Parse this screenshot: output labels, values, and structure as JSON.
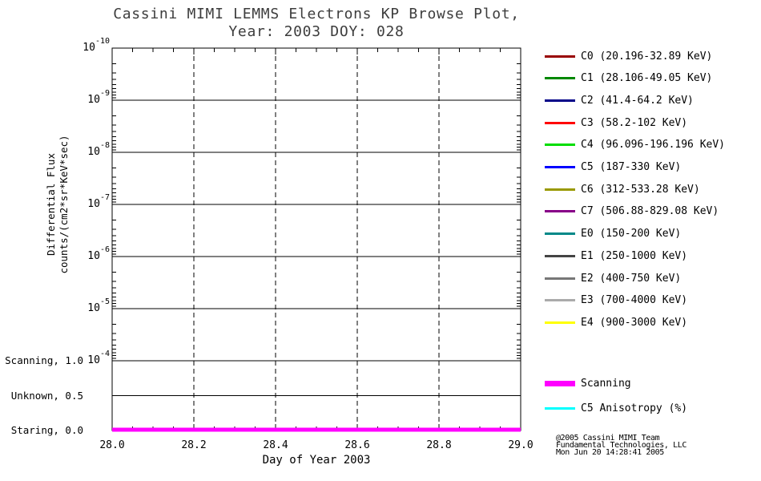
{
  "title": {
    "line1": "Cassini MIMI LEMMS Electrons KP Browse Plot,",
    "line2": "Year: 2003 DOY: 028"
  },
  "axes": {
    "x_title": "Day of Year 2003",
    "y_title_line1": "Differential Flux",
    "y_title_line2": "counts/(cm2*sr*KeV*sec)"
  },
  "attribution": {
    "line1": "@2005 Cassini MIMI Team",
    "line2": "Fundamental Technologies, LLC",
    "line3": "Mon Jun 20 14:28:41 2005"
  },
  "chart_data": {
    "type": "line",
    "title": "Cassini MIMI LEMMS Electrons KP Browse Plot, Year: 2003 DOY: 028",
    "xlabel": "Day of Year 2003",
    "ylabel": "Differential Flux counts/(cm2*sr*KeV*sec)",
    "xlim": [
      28.0,
      29.0
    ],
    "x_tick_labels": [
      "28.0",
      "28.2",
      "28.4",
      "28.6",
      "28.8",
      "29.0"
    ],
    "y_scale": "log, reversed: 1e-10 at top to 1e-4 at bottom of flux panel",
    "y_tick_exponents": [
      -10,
      -9,
      -8,
      -7,
      -6,
      -5,
      -4
    ],
    "mode_ticks": [
      {
        "label": "Scanning, 1.0",
        "value": 1.0
      },
      {
        "label": "Unknown, 0.5",
        "value": 0.5
      },
      {
        "label": "Staring, 0.0",
        "value": 0.0
      }
    ],
    "grid": {
      "horizontal": "solid",
      "vertical": "dashed",
      "legend_position": "right"
    },
    "series": [
      {
        "name": "Scanning",
        "color": "#FF00FF",
        "axis": "mode",
        "x": [
          28.0,
          29.0
        ],
        "values": [
          0.0,
          0.0
        ],
        "note": "thick magenta line at mode value 0.0 (Staring) across entire day"
      }
    ],
    "flux_channels_plotted": "none visible (no electron flux data drawn on plot)"
  },
  "legend": {
    "channels": [
      {
        "label": "C0 (20.196-32.89 KeV)",
        "color": "#990000"
      },
      {
        "label": "C1 (28.106-49.05 KeV)",
        "color": "#008800"
      },
      {
        "label": "C2 (41.4-64.2 KeV)",
        "color": "#000088"
      },
      {
        "label": "C3 (58.2-102 KeV)",
        "color": "#FF0000"
      },
      {
        "label": "C4 (96.096-196.196 KeV)",
        "color": "#00DD00"
      },
      {
        "label": "C5 (187-330 KeV)",
        "color": "#0000FF"
      },
      {
        "label": "C6 (312-533.28 KeV)",
        "color": "#999900"
      },
      {
        "label": "C7 (506.88-829.08 KeV)",
        "color": "#880088"
      },
      {
        "label": "E0 (150-200 KeV)",
        "color": "#008888"
      },
      {
        "label": "E1 (250-1000 KeV)",
        "color": "#444444"
      },
      {
        "label": "E2 (400-750 KeV)",
        "color": "#777777"
      },
      {
        "label": "E3 (700-4000 KeV)",
        "color": "#AAAAAA"
      },
      {
        "label": "E4 (900-3000 KeV)",
        "color": "#FFFF00"
      }
    ],
    "extra": [
      {
        "label": "Scanning",
        "color": "#FF00FF",
        "thick": true
      },
      {
        "label": "C5 Anisotropy (%)",
        "color": "#00FFFF",
        "thick": false
      }
    ]
  }
}
